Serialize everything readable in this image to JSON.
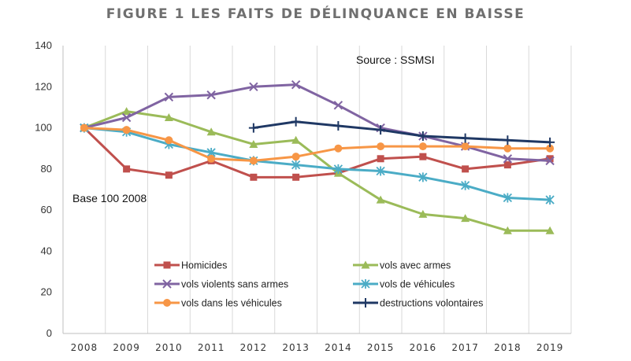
{
  "chart_data": {
    "type": "line",
    "title": "FIGURE 1 LES FAITS DE DÉLINQUANCE EN BAISSE",
    "annotations": {
      "source": "Source : SSMSI",
      "base": "Base 100 2008"
    },
    "x": [
      "2008",
      "2009",
      "2010",
      "2011",
      "2012",
      "2013",
      "2014",
      "2015",
      "2016",
      "2017",
      "2018",
      "2019"
    ],
    "y_ticks": [
      "0",
      "20",
      "40",
      "60",
      "80",
      "100",
      "120",
      "140"
    ],
    "ylim": [
      0,
      140
    ],
    "grid": "vertical",
    "legend_position": "bottom-center",
    "series": [
      {
        "name": "Homicides",
        "color": "#c0504d",
        "marker": "square",
        "values": [
          100,
          80,
          77,
          84,
          76,
          76,
          78,
          85,
          86,
          80,
          82,
          85
        ]
      },
      {
        "name": "vols avec  armes",
        "color": "#9bbb59",
        "marker": "triangle",
        "values": [
          100,
          108,
          105,
          98,
          92,
          94,
          78,
          65,
          58,
          56,
          50,
          50
        ]
      },
      {
        "name": "vols violents sans armes",
        "color": "#8064a2",
        "marker": "x",
        "values": [
          100,
          105,
          115,
          116,
          120,
          121,
          111,
          100,
          96,
          91,
          85,
          84
        ]
      },
      {
        "name": "vols de véhicules",
        "color": "#4bacc6",
        "marker": "star",
        "values": [
          100,
          98,
          92,
          88,
          84,
          82,
          80,
          79,
          76,
          72,
          66,
          65
        ]
      },
      {
        "name": "vols dans les véhicules",
        "color": "#f79646",
        "marker": "circle",
        "values": [
          100,
          99,
          94,
          85,
          84,
          86,
          90,
          91,
          91,
          91,
          90,
          90
        ]
      },
      {
        "name": "destructions volontaires",
        "color": "#1f3864",
        "marker": "plus",
        "values": [
          null,
          null,
          null,
          null,
          100,
          103,
          101,
          99,
          96,
          95,
          94,
          93
        ]
      }
    ]
  }
}
